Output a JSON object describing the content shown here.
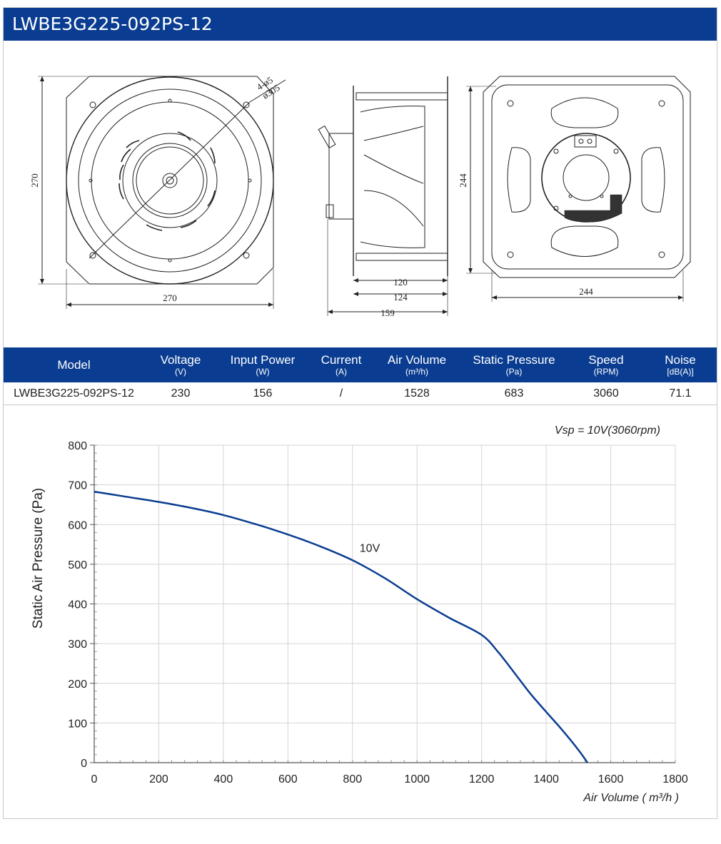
{
  "title": "LWBE3G225-092PS-12",
  "drawings": {
    "front": {
      "width": "270",
      "height": "270",
      "hole_label": "4-ø5",
      "diameter_label": "ø305"
    },
    "side": {
      "d1": "120",
      "d2": "124",
      "d3": "159"
    },
    "back": {
      "width": "244",
      "height": "244"
    }
  },
  "spec_table": {
    "headers": [
      {
        "label": "Model",
        "unit": ""
      },
      {
        "label": "Voltage",
        "unit": "(V)"
      },
      {
        "label": "Input Power",
        "unit": "(W)"
      },
      {
        "label": "Current",
        "unit": "(A)"
      },
      {
        "label": "Air Volume",
        "unit": "(m³/h)"
      },
      {
        "label": "Static Pressure",
        "unit": "(Pa)"
      },
      {
        "label": "Speed",
        "unit": "(RPM)"
      },
      {
        "label": "Noise",
        "unit": "[dB(A)]"
      }
    ],
    "row": [
      "LWBE3G225-092PS-12",
      "230",
      "156",
      "/",
      "1528",
      "683",
      "3060",
      "71.1"
    ]
  },
  "chart_data": {
    "type": "line",
    "annotation": "Vsp = 10V(3060rpm)",
    "xlabel": "Air Volume ( m³/h )",
    "ylabel": "Static Air Pressure  (Pa)",
    "xlim": [
      0,
      1800
    ],
    "ylim": [
      0,
      800
    ],
    "xticks": [
      "0",
      "200",
      "400",
      "600",
      "800",
      "1000",
      "1200",
      "1400",
      "1600",
      "1800"
    ],
    "yticks": [
      "0",
      "100",
      "200",
      "300",
      "400",
      "500",
      "600",
      "700",
      "800"
    ],
    "grid": true,
    "line_color": "#0a3d91",
    "series": [
      {
        "name": "10V",
        "x": [
          0,
          100,
          200,
          300,
          400,
          500,
          600,
          700,
          800,
          900,
          1000,
          1100,
          1200,
          1250,
          1300,
          1350,
          1400,
          1450,
          1500,
          1528
        ],
        "y": [
          683,
          670,
          657,
          642,
          624,
          601,
          575,
          545,
          510,
          465,
          412,
          365,
          322,
          280,
          228,
          175,
          128,
          82,
          32,
          0
        ]
      }
    ]
  }
}
